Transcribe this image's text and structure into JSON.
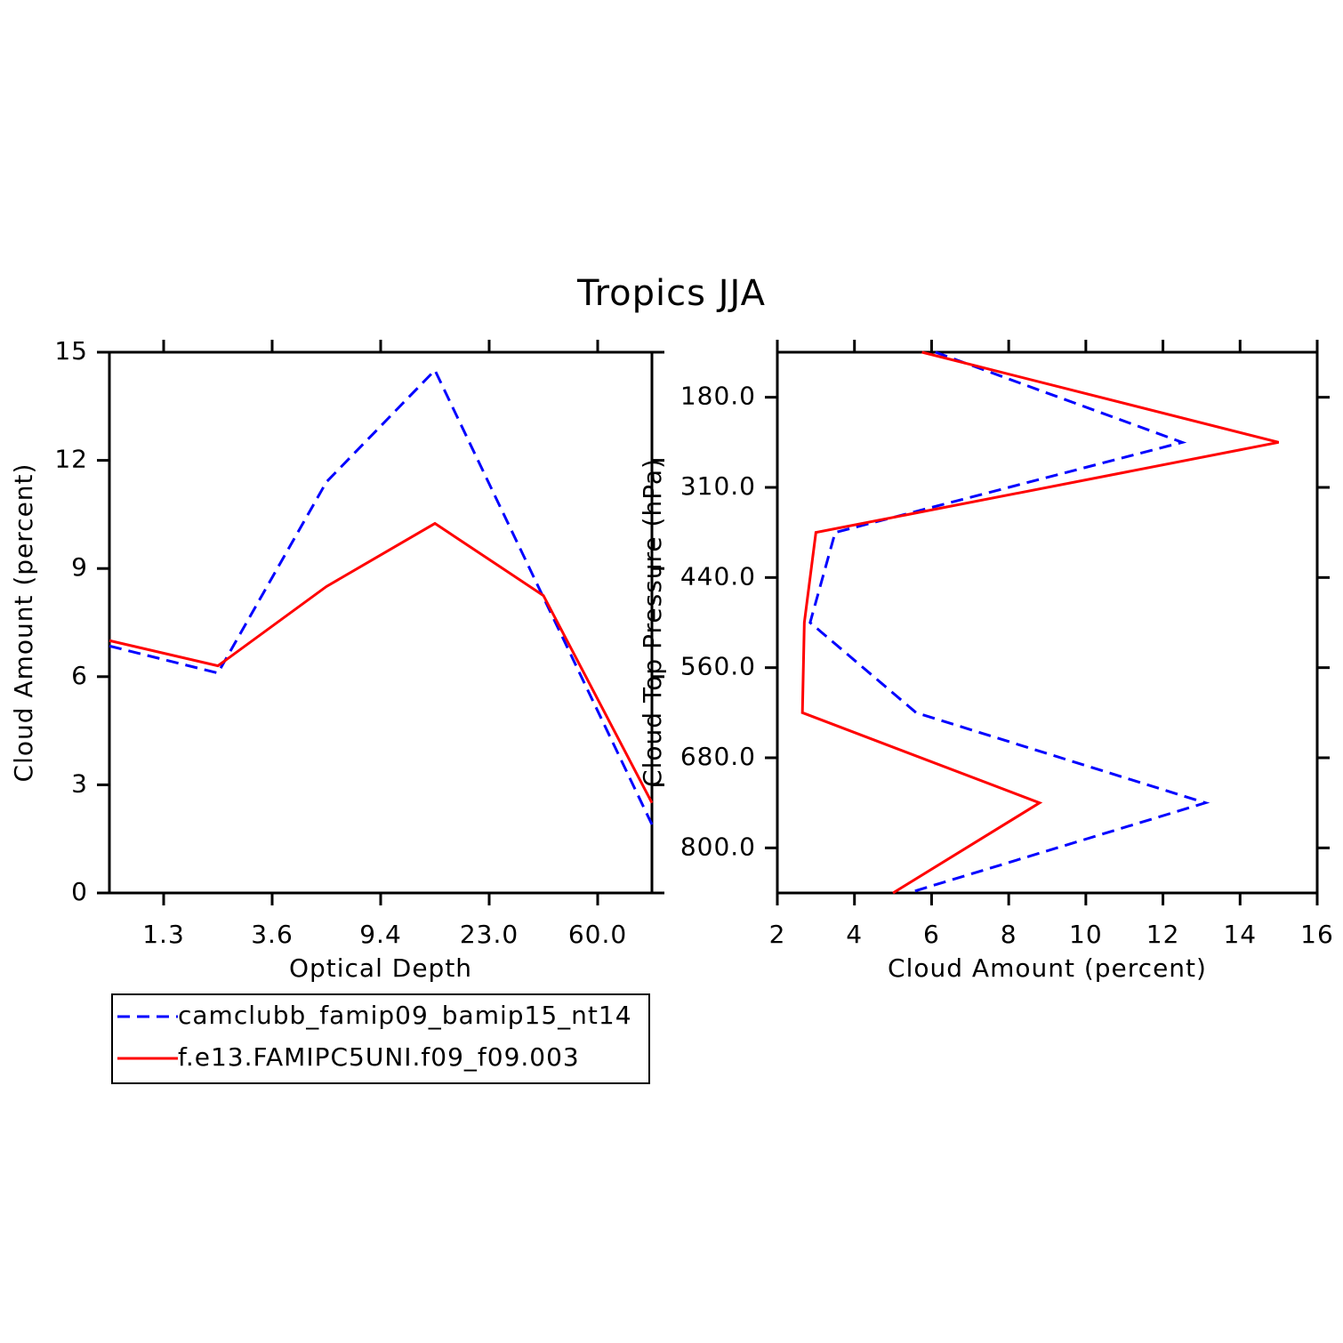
{
  "title": "Tropics JJA",
  "chart_data": [
    {
      "type": "line",
      "orientation": "vertical",
      "xlabel": "Optical Depth",
      "ylabel": "Cloud Amount (percent)",
      "x": [
        0,
        1,
        2,
        3,
        4,
        5
      ],
      "xlim": [
        0,
        5
      ],
      "xticks": [
        {
          "value": 0.5,
          "label": "1.3"
        },
        {
          "value": 1.5,
          "label": "3.6"
        },
        {
          "value": 2.5,
          "label": "9.4"
        },
        {
          "value": 3.5,
          "label": "23.0"
        },
        {
          "value": 4.5,
          "label": "60.0"
        }
      ],
      "ylim": [
        0,
        15
      ],
      "yticks": [
        0,
        3,
        6,
        9,
        12,
        15
      ],
      "legend": "below",
      "series": [
        {
          "name": "camclubb_famip09_bamip15_nt14",
          "color": "#0000ff",
          "dash": true,
          "values": [
            6.85,
            6.1,
            11.4,
            14.5,
            8.2,
            1.9
          ]
        },
        {
          "name": "f.e13.FAMIPC5UNI.f09_f09.003",
          "color": "#ff0000",
          "dash": false,
          "values": [
            7.0,
            6.3,
            8.5,
            10.25,
            8.25,
            2.5
          ]
        }
      ]
    },
    {
      "type": "line",
      "orientation": "horizontal",
      "xlabel": "Cloud Amount (percent)",
      "ylabel": "Cloud Top Pressure (hPa)",
      "y": [
        0,
        1,
        2,
        3,
        4,
        5,
        6
      ],
      "ylim": [
        6,
        0
      ],
      "yticks": [
        {
          "value": 0.5,
          "label": "180.0"
        },
        {
          "value": 1.5,
          "label": "310.0"
        },
        {
          "value": 2.5,
          "label": "440.0"
        },
        {
          "value": 3.5,
          "label": "560.0"
        },
        {
          "value": 4.5,
          "label": "680.0"
        },
        {
          "value": 5.5,
          "label": "800.0"
        }
      ],
      "xlim": [
        2,
        16
      ],
      "xticks": [
        2,
        4,
        6,
        8,
        10,
        12,
        14,
        16
      ],
      "series": [
        {
          "color": "#0000ff",
          "dash": true,
          "values": [
            6.1,
            12.5,
            3.5,
            2.85,
            5.6,
            13.1,
            5.4
          ]
        },
        {
          "color": "#ff0000",
          "dash": false,
          "values": [
            5.75,
            15.0,
            3.0,
            2.7,
            2.65,
            8.8,
            5.0
          ]
        }
      ]
    }
  ]
}
